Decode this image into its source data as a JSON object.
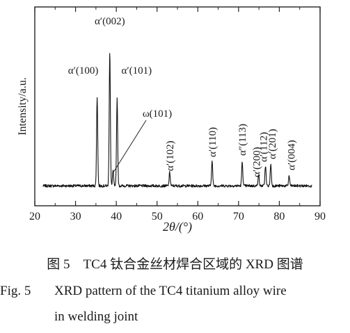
{
  "chart_data": {
    "type": "line",
    "xlabel": "2θ/(°)",
    "ylabel": "Intensity/a.u.",
    "xlim": [
      20,
      90
    ],
    "x_ticks": [
      20,
      30,
      40,
      50,
      60,
      70,
      80,
      90
    ],
    "ylim": [
      0,
      1.0
    ],
    "y_ticks_shown": false,
    "grid": false,
    "baseline": 0.04,
    "peaks": [
      {
        "x": 35.3,
        "y": 0.57
      },
      {
        "x": 38.4,
        "y": 0.84
      },
      {
        "x": 39.2,
        "y": 0.13
      },
      {
        "x": 40.2,
        "y": 0.56
      },
      {
        "x": 53.1,
        "y": 0.12
      },
      {
        "x": 63.5,
        "y": 0.19
      },
      {
        "x": 70.9,
        "y": 0.18
      },
      {
        "x": 74.9,
        "y": 0.11
      },
      {
        "x": 76.6,
        "y": 0.16
      },
      {
        "x": 77.9,
        "y": 0.17
      },
      {
        "x": 82.4,
        "y": 0.1
      }
    ],
    "annotations": [
      {
        "text": "α′(100)",
        "x": 35.3
      },
      {
        "text": "α′(002)",
        "x": 38.4
      },
      {
        "text": "α′(101)",
        "x": 40.2
      },
      {
        "text": "ω(101)",
        "x": 39.2
      },
      {
        "text": "α′(102)",
        "x": 53.1
      },
      {
        "text": "α′(110)",
        "x": 63.5
      },
      {
        "text": "α″(113)",
        "x": 70.9
      },
      {
        "text": "α′(200)",
        "x": 74.9
      },
      {
        "text": "α′(112)",
        "x": 76.6
      },
      {
        "text": "α′(201)",
        "x": 77.9
      },
      {
        "text": "α′(004)",
        "x": 82.4
      }
    ]
  },
  "caption": {
    "cn": "图 5　TC4 钛合金丝材焊合区域的 XRD 图谱",
    "en_number": "Fig. 5",
    "en_line1": "XRD pattern of the TC4 titanium alloy wire",
    "en_line2": "in welding joint"
  }
}
